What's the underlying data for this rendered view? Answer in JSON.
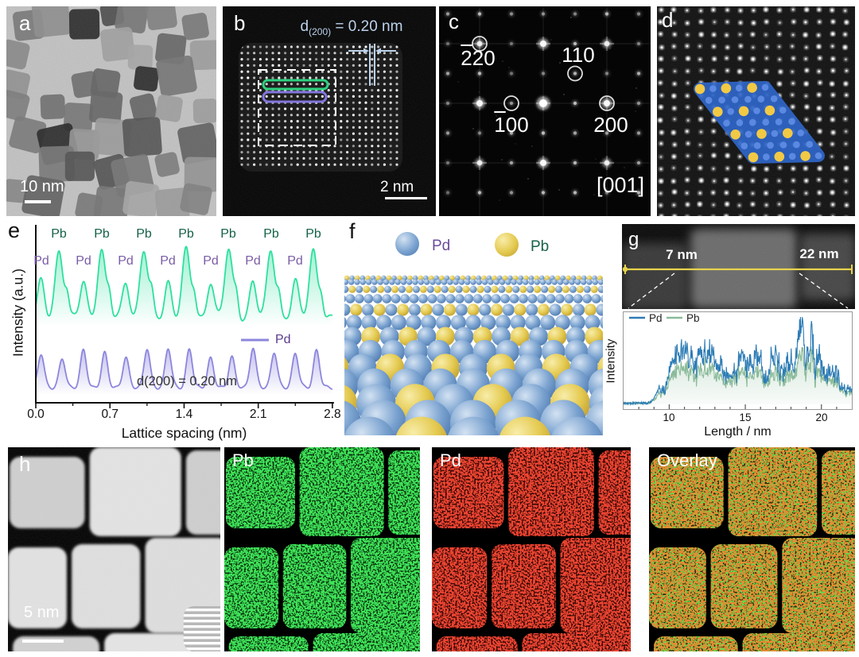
{
  "panels": {
    "a": {
      "label": "a",
      "scale_bar": "10 nm"
    },
    "b": {
      "label": "b",
      "d_spacing": {
        "prefix": "d",
        "sub": "(200)",
        "value": " = 0.20 nm"
      },
      "scale_bar": "2 nm"
    },
    "c": {
      "label": "c",
      "zone_axis": "[001]",
      "spots": [
        {
          "bar": "2",
          "rest": "20"
        },
        {
          "bar": "",
          "rest": "110"
        },
        {
          "bar": "1",
          "rest": "00"
        },
        {
          "bar": "",
          "rest": "200"
        }
      ]
    },
    "d": {
      "label": "d"
    },
    "e": {
      "label": "e"
    },
    "f": {
      "label": "f",
      "legend": [
        {
          "name": "Pd",
          "color": "#6f9bd1"
        },
        {
          "name": "Pb",
          "color": "#e7cd55"
        }
      ]
    },
    "g": {
      "label": "g",
      "line_start_label": "7 nm",
      "line_end_label": "22 nm"
    },
    "h": {
      "label": "h",
      "scale_bar": "5 nm",
      "map_labels": [
        "Pb",
        "Pd",
        "Overlay"
      ]
    }
  },
  "chart_data": [
    {
      "id": "e",
      "type": "line",
      "xlabel": "Lattice spacing (nm)",
      "ylabel": "Intensity (a.u.)",
      "xlim": [
        0.0,
        2.8
      ],
      "xticks": [
        0.0,
        0.7,
        1.4,
        2.1,
        2.8
      ],
      "xtick_labels": [
        "0.0",
        "0.7",
        "1.4",
        "2.1",
        "2.8"
      ],
      "annotation": "d(200) = 0.20 nm",
      "legend": [
        {
          "label": "Pd",
          "color": "#8d86dd"
        }
      ],
      "series": [
        {
          "name": "Pb/Pd atomic row profile",
          "color": "#2ee09e",
          "peak_labels": {
            "Pb": [
              "Pb",
              "Pb",
              "Pb",
              "Pb",
              "Pb",
              "Pb",
              "Pb"
            ],
            "Pd": [
              "Pd",
              "Pd",
              "Pd",
              "Pd",
              "Pd",
              "Pd",
              "Pd"
            ]
          },
          "pb_peaks_nm": [
            0.22,
            0.62,
            1.02,
            1.42,
            1.82,
            2.22,
            2.62
          ],
          "pd_peaks_nm": [
            0.05,
            0.45,
            0.85,
            1.25,
            1.65,
            2.05,
            2.45
          ]
        },
        {
          "name": "Pd atomic row profile",
          "color": "#8d86dd",
          "first_peak_nm": 0.05,
          "peak_spacing_nm": 0.2,
          "peak_count": 14
        }
      ]
    },
    {
      "id": "g",
      "type": "line",
      "xlabel": "Length / nm",
      "ylabel": "Intensity",
      "xlim": [
        7,
        22
      ],
      "xticks": [
        10,
        15,
        20
      ],
      "xtick_labels": [
        "10",
        "15",
        "20"
      ],
      "legend": [
        {
          "label": "Pd",
          "color": "#2d7cb5"
        },
        {
          "label": "Pb",
          "color": "#8abb9a"
        }
      ],
      "series": [
        {
          "name": "Pd",
          "color": "#2d7cb5"
        },
        {
          "name": "Pb",
          "color": "#8abb9a"
        }
      ],
      "profile_shape": "low until ~9 nm, noisy plateau 10-18 nm, maximum near 19 nm, decreasing to 22 nm"
    }
  ],
  "colors": {
    "b_annotation": "#bcd2ec",
    "b_row_marker_green": "#2fd07f",
    "b_row_marker_purple": "#8276dd",
    "pb_text": "#15614a",
    "pd_text": "#7a5ca6",
    "e_legend_text": "#5a3b8e",
    "d_overlay_blue": "#2f66c8",
    "d_atom_blue": "#5b89e2",
    "d_atom_yellow": "#f2c945",
    "g_scan_line": "#e6d44c",
    "h_map_green": "#18c421",
    "h_map_red": "#d91a0f"
  }
}
